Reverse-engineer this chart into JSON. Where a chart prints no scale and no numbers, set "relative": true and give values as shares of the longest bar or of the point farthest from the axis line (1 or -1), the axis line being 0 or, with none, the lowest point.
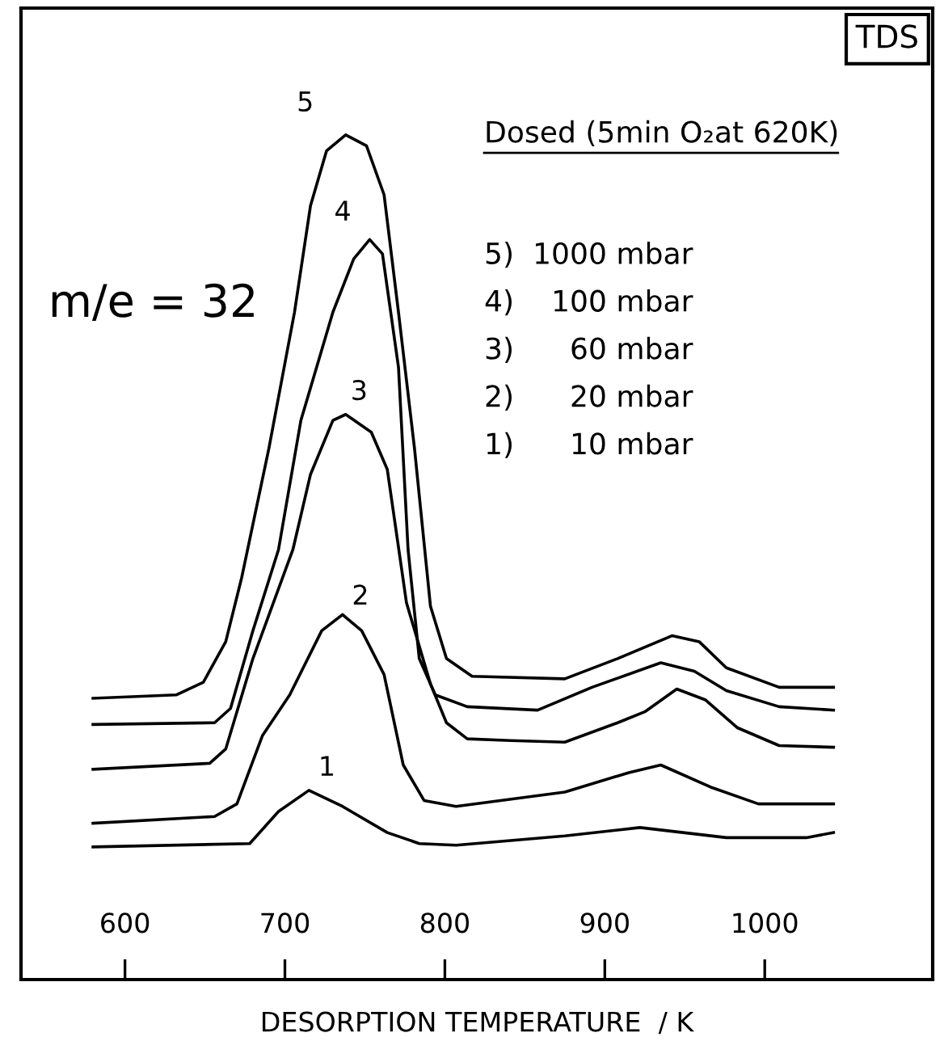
{
  "chart_data": {
    "type": "line",
    "relative": true,
    "xlabel": "DESORPTION TEMPERATURE  / K",
    "xlim": [
      535,
      1105
    ],
    "xticks": [
      600,
      700,
      800,
      900,
      1000
    ],
    "grid": false,
    "marker": "none",
    "line_style": "solid",
    "annotations": [
      "TDS",
      "m/e = 32",
      "Dosed (5min O₂at 620K)",
      "5)  1000 mbar",
      "4)    100 mbar",
      "3)      60 mbar",
      "2)      20 mbar",
      "1)      10 mbar"
    ],
    "series": [
      {
        "name": "1",
        "color": "#000000",
        "x": [
          580,
          678,
          696,
          715,
          736,
          764,
          784,
          807,
          875,
          922,
          976,
          1026,
          1043
        ],
        "values": [
          0.157,
          0.161,
          0.199,
          0.224,
          0.205,
          0.174,
          0.161,
          0.159,
          0.17,
          0.18,
          0.168,
          0.168,
          0.174
        ]
      },
      {
        "name": "2",
        "color": "#000000",
        "x": [
          580,
          656,
          670,
          686,
          703,
          723,
          736,
          748,
          762,
          774,
          787,
          807,
          875,
          915,
          935,
          966,
          996,
          1043
        ],
        "values": [
          0.185,
          0.193,
          0.208,
          0.289,
          0.337,
          0.413,
          0.432,
          0.413,
          0.361,
          0.254,
          0.212,
          0.205,
          0.222,
          0.245,
          0.254,
          0.228,
          0.208,
          0.208
        ]
      },
      {
        "name": "3",
        "color": "#000000",
        "x": [
          580,
          653,
          663,
          680,
          705,
          716,
          730,
          738,
          754,
          764,
          776,
          791,
          801,
          814,
          841,
          875,
          908,
          925,
          945,
          963,
          983,
          1009,
          1043
        ],
        "values": [
          0.249,
          0.256,
          0.273,
          0.38,
          0.509,
          0.598,
          0.662,
          0.669,
          0.648,
          0.604,
          0.446,
          0.35,
          0.304,
          0.285,
          0.283,
          0.281,
          0.304,
          0.317,
          0.344,
          0.331,
          0.298,
          0.277,
          0.275
        ]
      },
      {
        "name": "4",
        "color": "#000000",
        "x": [
          580,
          656,
          666,
          680,
          696,
          710,
          730,
          743,
          753,
          761,
          771,
          777,
          784,
          794,
          814,
          858,
          892,
          935,
          956,
          976,
          1009,
          1043
        ],
        "values": [
          0.302,
          0.304,
          0.321,
          0.413,
          0.509,
          0.662,
          0.79,
          0.853,
          0.876,
          0.859,
          0.725,
          0.509,
          0.38,
          0.337,
          0.323,
          0.319,
          0.346,
          0.375,
          0.365,
          0.342,
          0.323,
          0.319
        ]
      },
      {
        "name": "5",
        "color": "#000000",
        "x": [
          580,
          632,
          649,
          663,
          673,
          690,
          706,
          716,
          726,
          738,
          751,
          762,
          771,
          781,
          791,
          801,
          817,
          875,
          908,
          942,
          959,
          976,
          1009,
          1043
        ],
        "values": [
          0.333,
          0.337,
          0.352,
          0.4,
          0.476,
          0.629,
          0.79,
          0.916,
          0.981,
          1,
          0.987,
          0.929,
          0.79,
          0.629,
          0.442,
          0.38,
          0.359,
          0.356,
          0.38,
          0.407,
          0.4,
          0.369,
          0.346,
          0.346
        ]
      }
    ]
  }
}
